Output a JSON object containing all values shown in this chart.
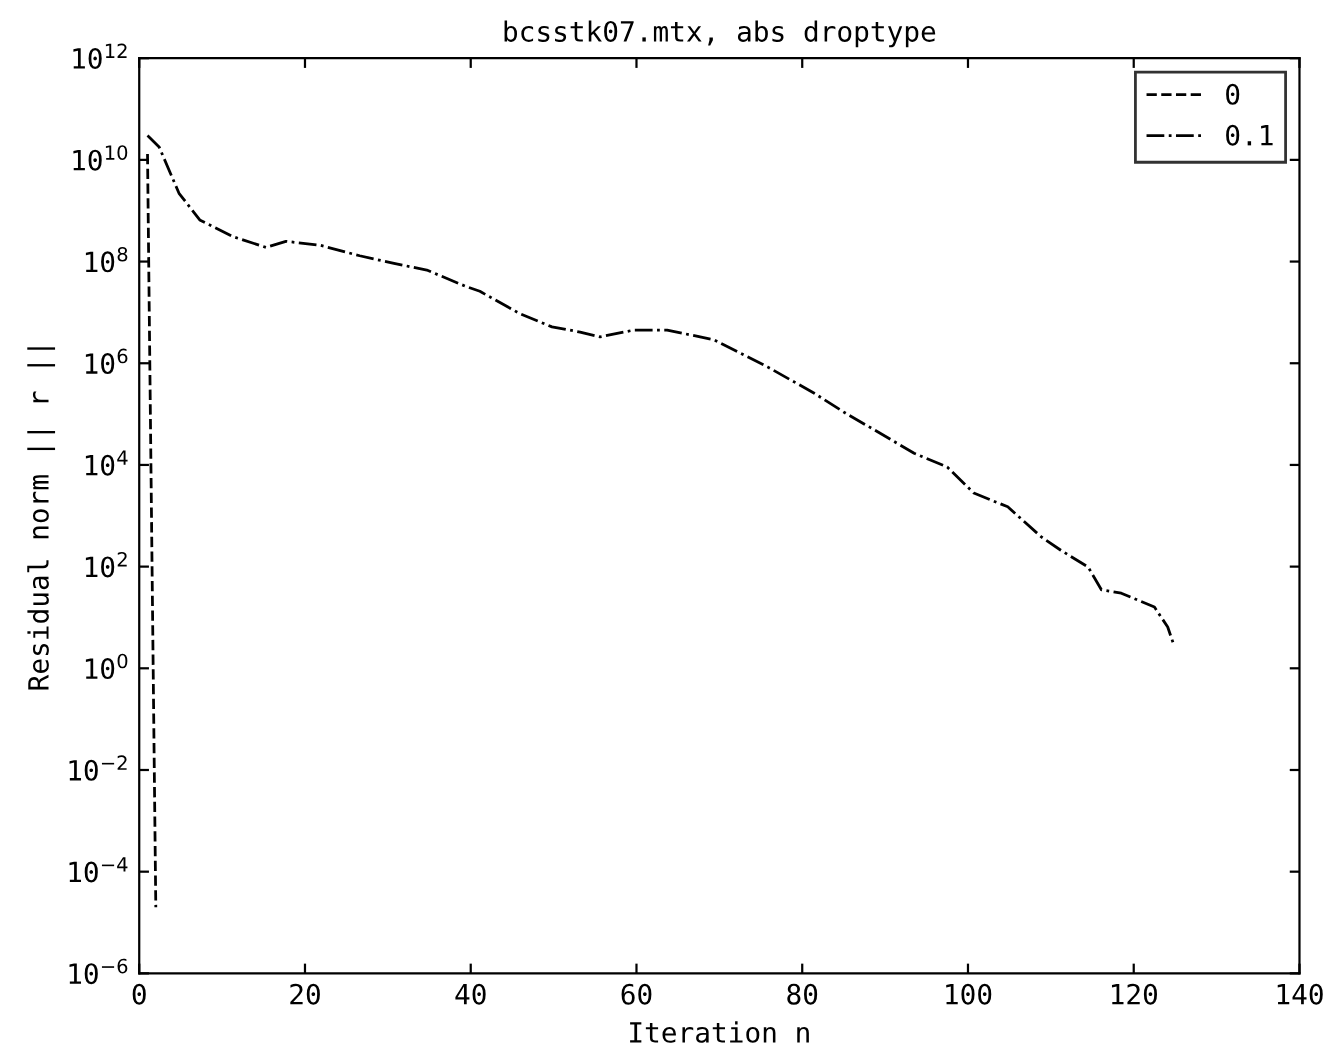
{
  "chart_data": {
    "type": "line",
    "title": "bcsstk07.mtx, abs droptype",
    "xlabel": "Iteration n",
    "ylabel": "Residual norm || r ||",
    "log": "y",
    "legend": "top right",
    "grid": false,
    "xlim": [
      0,
      140
    ],
    "xticks": [
      0,
      20,
      40,
      60,
      80,
      100,
      120,
      140
    ],
    "ylim": [
      1e-06,
      1000000000000.0
    ],
    "yticks": [
      {
        "value": 1e-06,
        "label": "10$^{−6}$"
      },
      {
        "value": 0.0001,
        "label": "10$^{−4}$"
      },
      {
        "value": 0.01,
        "label": "10$^{−2}$"
      },
      {
        "value": 1,
        "label": "10$^{0}$"
      },
      {
        "value": 100.0,
        "label": "10$^{2}$"
      },
      {
        "value": 10000.0,
        "label": "10$^{4}$"
      },
      {
        "value": 1000000.0,
        "label": "10$^{6}$"
      },
      {
        "value": 100000000.0,
        "label": "10$^{8}$"
      },
      {
        "value": 10000000000.0,
        "label": "10$^{10}$"
      },
      {
        "value": 1000000000000.0,
        "label": "10$^{12}$"
      }
    ],
    "series": [
      {
        "name": "0",
        "color": "#000000",
        "line_style": "dashed",
        "x": [
          1,
          2
        ],
        "values": [
          13000000000.0,
          2e-05
        ]
      },
      {
        "name": "0.1",
        "color": "#000000",
        "line_style": "dashdot",
        "x": [
          1,
          2.4,
          4.8,
          7.3,
          11.3,
          15.3,
          17.7,
          21.8,
          26.6,
          30.6,
          34.7,
          39.5,
          41.1,
          45.9,
          49.8,
          53.2,
          55.6,
          59.7,
          63.7,
          69.3,
          75.8,
          81.4,
          85.4,
          88.7,
          93.5,
          97.5,
          100.7,
          104.8,
          108.8,
          111.2,
          114.5,
          116.1,
          118.5,
          122.5,
          124.1,
          124.8
        ],
        "values": [
          30000000000.0,
          18000000000.0,
          2200000000.0,
          660000000.0,
          310000000.0,
          190000000.0,
          250000000.0,
          210000000.0,
          130000000.0,
          93000000.0,
          68000000.0,
          32000000.0,
          26000000.0,
          9500000.0,
          5200000.0,
          4100000.0,
          3300000.0,
          4500000.0,
          4500000.0,
          2900000.0,
          850000.0,
          260000.0,
          100000.0,
          49000.0,
          17000.0,
          9100.0,
          2800.0,
          1500.0,
          390,
          210,
          98,
          35,
          30,
          16,
          6.5,
          3.0
        ]
      }
    ]
  }
}
